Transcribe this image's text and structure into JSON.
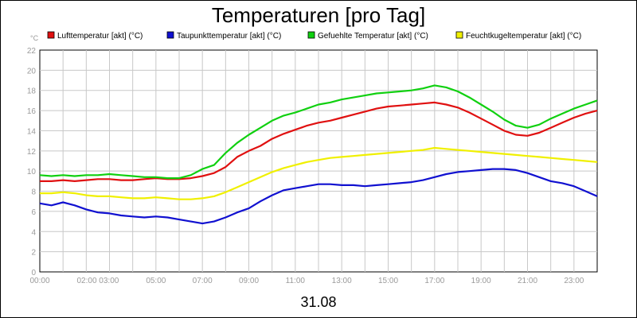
{
  "chart_data": {
    "type": "line",
    "title": "Temperaturen [pro Tag]",
    "ylabel": "°C",
    "xlabel": "31.08",
    "ylim": [
      0,
      22
    ],
    "yticks": [
      0,
      2,
      4,
      6,
      8,
      10,
      12,
      14,
      16,
      18,
      20,
      22
    ],
    "xlim": [
      0,
      24
    ],
    "xticks": [
      {
        "label": "00:00",
        "h": 0
      },
      {
        "label": "02:00 03:00",
        "h": 2.5
      },
      {
        "label": "05:00",
        "h": 5
      },
      {
        "label": "07:00",
        "h": 7
      },
      {
        "label": "09:00",
        "h": 9
      },
      {
        "label": "11:00",
        "h": 11
      },
      {
        "label": "13:00",
        "h": 13
      },
      {
        "label": "15:00",
        "h": 15
      },
      {
        "label": "17:00",
        "h": 17
      },
      {
        "label": "19:00",
        "h": 19
      },
      {
        "label": "21:00",
        "h": 21
      },
      {
        "label": "23:00",
        "h": 23
      }
    ],
    "grid": true,
    "legend_position": "top",
    "x": [
      0,
      0.5,
      1,
      1.5,
      2,
      2.5,
      3,
      3.5,
      4,
      4.5,
      5,
      5.5,
      6,
      6.5,
      7,
      7.5,
      8,
      8.5,
      9,
      9.5,
      10,
      10.5,
      11,
      11.5,
      12,
      12.5,
      13,
      13.5,
      14,
      14.5,
      15,
      15.5,
      16,
      16.5,
      17,
      17.5,
      18,
      18.5,
      19,
      19.5,
      20,
      20.5,
      21,
      21.5,
      22,
      22.5,
      23,
      23.5,
      24
    ],
    "series": [
      {
        "name": "Lufttemperatur [akt] (°C)",
        "color": "#e01010",
        "values": [
          9.0,
          9.0,
          9.1,
          9.0,
          9.1,
          9.2,
          9.2,
          9.1,
          9.1,
          9.2,
          9.3,
          9.2,
          9.2,
          9.3,
          9.5,
          9.8,
          10.4,
          11.4,
          12.0,
          12.5,
          13.2,
          13.7,
          14.1,
          14.5,
          14.8,
          15.0,
          15.3,
          15.6,
          15.9,
          16.2,
          16.4,
          16.5,
          16.6,
          16.7,
          16.8,
          16.6,
          16.3,
          15.8,
          15.2,
          14.6,
          14.0,
          13.6,
          13.5,
          13.8,
          14.3,
          14.8,
          15.3,
          15.7,
          16.0
        ]
      },
      {
        "name": "Taupunkttemperatur [akt] (°C)",
        "color": "#1010d0",
        "values": [
          6.8,
          6.6,
          6.9,
          6.6,
          6.2,
          5.9,
          5.8,
          5.6,
          5.5,
          5.4,
          5.5,
          5.4,
          5.2,
          5.0,
          4.8,
          5.0,
          5.4,
          5.9,
          6.3,
          7.0,
          7.6,
          8.1,
          8.3,
          8.5,
          8.7,
          8.7,
          8.6,
          8.6,
          8.5,
          8.6,
          8.7,
          8.8,
          8.9,
          9.1,
          9.4,
          9.7,
          9.9,
          10.0,
          10.1,
          10.2,
          10.2,
          10.1,
          9.8,
          9.4,
          9.0,
          8.8,
          8.5,
          8.0,
          7.5
        ]
      },
      {
        "name": "Gefuehlte Temperatur [akt] (°C)",
        "color": "#10d010",
        "values": [
          9.6,
          9.5,
          9.6,
          9.5,
          9.6,
          9.6,
          9.7,
          9.6,
          9.5,
          9.4,
          9.4,
          9.3,
          9.3,
          9.6,
          10.2,
          10.6,
          11.8,
          12.8,
          13.6,
          14.3,
          15.0,
          15.5,
          15.8,
          16.2,
          16.6,
          16.8,
          17.1,
          17.3,
          17.5,
          17.7,
          17.8,
          17.9,
          18.0,
          18.2,
          18.5,
          18.3,
          17.9,
          17.3,
          16.6,
          15.9,
          15.1,
          14.5,
          14.3,
          14.6,
          15.2,
          15.7,
          16.2,
          16.6,
          17.0
        ]
      },
      {
        "name": "Feuchtkugeltemperatur [akt] (°C)",
        "color": "#f0f000",
        "values": [
          7.8,
          7.8,
          7.9,
          7.8,
          7.6,
          7.5,
          7.5,
          7.4,
          7.3,
          7.3,
          7.4,
          7.3,
          7.2,
          7.2,
          7.3,
          7.5,
          7.9,
          8.4,
          8.9,
          9.4,
          9.9,
          10.3,
          10.6,
          10.9,
          11.1,
          11.3,
          11.4,
          11.5,
          11.6,
          11.7,
          11.8,
          11.9,
          12.0,
          12.1,
          12.3,
          12.2,
          12.1,
          12.0,
          11.9,
          11.8,
          11.7,
          11.6,
          11.5,
          11.4,
          11.3,
          11.2,
          11.1,
          11.0,
          10.9
        ]
      }
    ]
  }
}
